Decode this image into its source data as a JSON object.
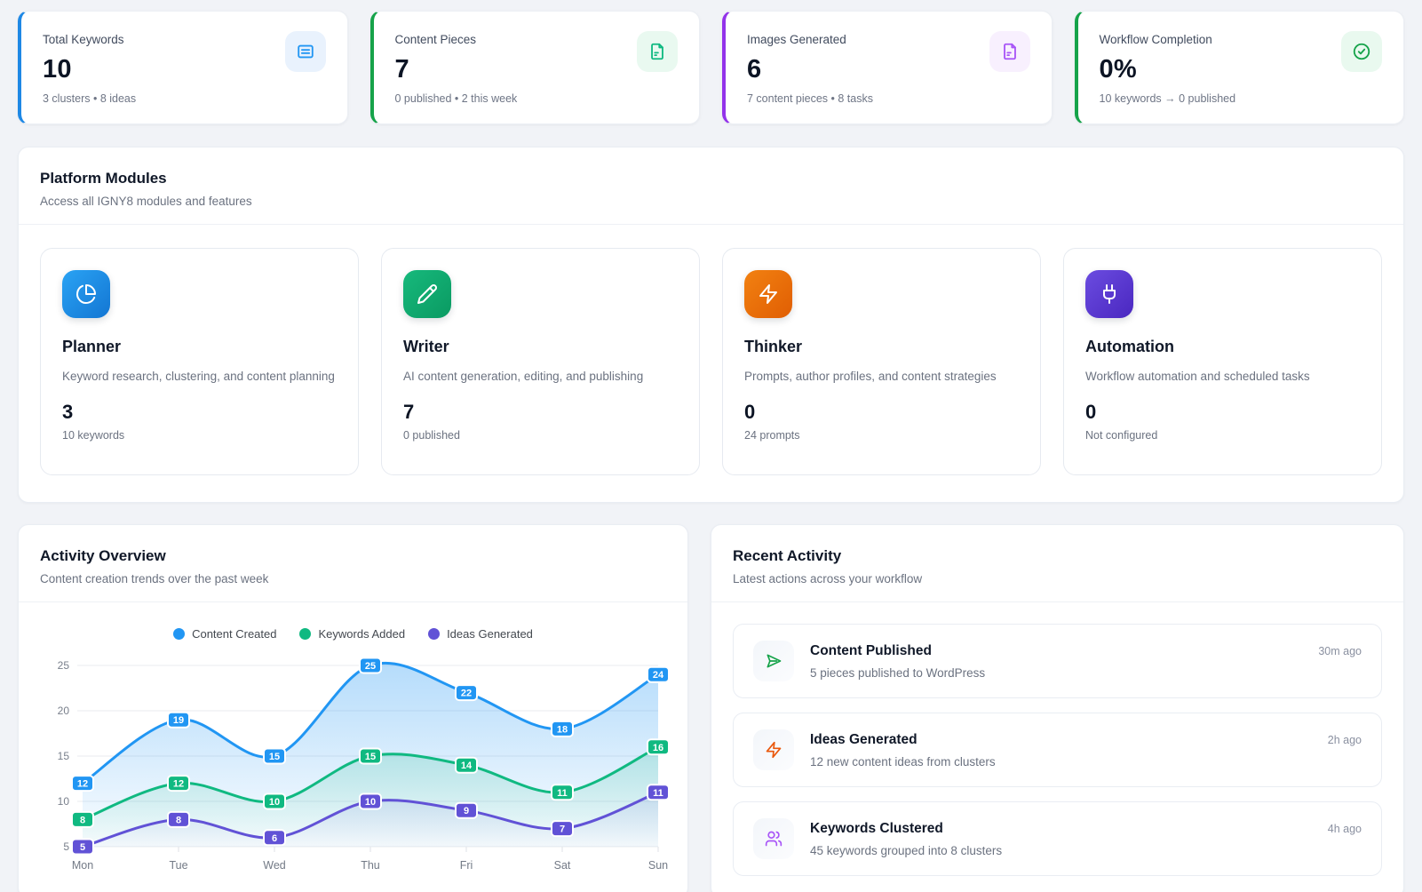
{
  "stats": [
    {
      "label": "Total Keywords",
      "value": "10",
      "sub": "3 clusters • 8 ideas",
      "accent": "#1e88e5",
      "icon": "list-icon"
    },
    {
      "label": "Content Pieces",
      "value": "7",
      "sub": "0 published • 2 this week",
      "accent": "#16a34a",
      "icon": "file-icon"
    },
    {
      "label": "Images Generated",
      "value": "6",
      "sub": "7 content pieces • 8 tasks",
      "accent": "#9333ea",
      "icon": "file-icon"
    },
    {
      "label": "Workflow Completion",
      "value": "0%",
      "sub": "10 keywords → 0 published",
      "accent": "#16a34a",
      "icon": "check-circle-icon"
    }
  ],
  "modules_section": {
    "title": "Platform Modules",
    "subtitle": "Access all IGNY8 modules and features",
    "modules": [
      {
        "name": "Planner",
        "icon": "pie-chart-icon",
        "description": "Keyword research, clustering, and content planning",
        "value": "3",
        "sub": "10 keywords",
        "color": "#1e88e5"
      },
      {
        "name": "Writer",
        "icon": "pencil-icon",
        "description": "AI content generation, editing, and publishing",
        "value": "7",
        "sub": "0 published",
        "color": "#10a56c"
      },
      {
        "name": "Thinker",
        "icon": "zap-icon",
        "description": "Prompts, author profiles, and content strategies",
        "value": "0",
        "sub": "24 prompts",
        "color": "#e8690a"
      },
      {
        "name": "Automation",
        "icon": "plug-icon",
        "description": "Workflow automation and scheduled tasks",
        "value": "0",
        "sub": "Not configured",
        "color": "#5b35d5"
      }
    ]
  },
  "activity_overview": {
    "title": "Activity Overview",
    "subtitle": "Content creation trends over the past week"
  },
  "chart_data": {
    "type": "line",
    "x": [
      "Mon",
      "Tue",
      "Wed",
      "Thu",
      "Fri",
      "Sat",
      "Sun"
    ],
    "series": [
      {
        "name": "Content Created",
        "color": "#2196f3",
        "values": [
          12,
          19,
          15,
          25,
          22,
          18,
          24
        ]
      },
      {
        "name": "Keywords Added",
        "color": "#10b981",
        "values": [
          8,
          12,
          10,
          15,
          14,
          11,
          16
        ]
      },
      {
        "name": "Ideas Generated",
        "color": "#6152d6",
        "values": [
          5,
          8,
          6,
          10,
          9,
          7,
          11
        ]
      }
    ],
    "ylim": [
      5,
      25
    ],
    "yticks": [
      5,
      10,
      15,
      20,
      25
    ],
    "grid": true,
    "smooth": true,
    "area_fill": true,
    "point_labels": true,
    "legend_position": "top"
  },
  "recent_activity": {
    "title": "Recent Activity",
    "subtitle": "Latest actions across your workflow",
    "items": [
      {
        "title": "Content Published",
        "description": "5 pieces published to WordPress",
        "time": "30m ago",
        "icon": "send-icon",
        "color": "#16a34a"
      },
      {
        "title": "Ideas Generated",
        "description": "12 new content ideas from clusters",
        "time": "2h ago",
        "icon": "zap-icon",
        "color": "#ea580c"
      },
      {
        "title": "Keywords Clustered",
        "description": "45 keywords grouped into 8 clusters",
        "time": "4h ago",
        "icon": "users-icon",
        "color": "#a855f7"
      }
    ]
  }
}
